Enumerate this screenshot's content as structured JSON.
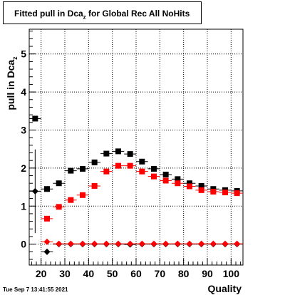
{
  "title": {
    "main": "Fitted pull in Dca",
    "subscript": "z",
    "rest": " for Global Rec All NoHits"
  },
  "footer": {
    "date": "Tue Sep  7 13:41:55 2021"
  },
  "colors": {
    "series_black": "#000000",
    "series_red": "#ff0000",
    "grid": "#000000",
    "frame": "#000000"
  },
  "chart_data": {
    "type": "scatter",
    "xlabel": "Quality",
    "ylabel": "pull in Dca",
    "ylabel_subscript": "z",
    "xlim": [
      15,
      105
    ],
    "ylim": [
      -0.55,
      5.65
    ],
    "x_ticks": [
      20,
      30,
      40,
      50,
      60,
      70,
      80,
      90,
      100
    ],
    "y_ticks": [
      0,
      1,
      2,
      3,
      4,
      5
    ],
    "grid": true,
    "series": [
      {
        "marker": "square",
        "color": "#000000",
        "points": [
          {
            "x": 17.5,
            "y": 3.3,
            "yerr": 0.05
          },
          {
            "x": 22.5,
            "y": 1.45,
            "yerr": 0.06
          },
          {
            "x": 27.5,
            "y": 1.6,
            "yerr": 0.03
          },
          {
            "x": 32.5,
            "y": 1.93,
            "yerr": 0.02
          },
          {
            "x": 37.5,
            "y": 1.98,
            "yerr": 0.02
          },
          {
            "x": 42.5,
            "y": 2.15,
            "yerr": 0.02
          },
          {
            "x": 47.5,
            "y": 2.38,
            "yerr": 0.02
          },
          {
            "x": 52.5,
            "y": 2.44,
            "yerr": 0.02
          },
          {
            "x": 57.5,
            "y": 2.37,
            "yerr": 0.02
          },
          {
            "x": 62.5,
            "y": 2.17,
            "yerr": 0.02
          },
          {
            "x": 67.5,
            "y": 1.98,
            "yerr": 0.02
          },
          {
            "x": 72.5,
            "y": 1.83,
            "yerr": 0.02
          },
          {
            "x": 77.5,
            "y": 1.71,
            "yerr": 0.02
          },
          {
            "x": 82.5,
            "y": 1.6,
            "yerr": 0.02
          },
          {
            "x": 87.5,
            "y": 1.53,
            "yerr": 0.02
          },
          {
            "x": 92.5,
            "y": 1.45,
            "yerr": 0.02
          },
          {
            "x": 97.5,
            "y": 1.42,
            "yerr": 0.02
          },
          {
            "x": 102.5,
            "y": 1.4,
            "yerr": 0.02
          }
        ]
      },
      {
        "marker": "square",
        "color": "#ff0000",
        "points": [
          {
            "x": 22.5,
            "y": 0.67,
            "yerr": 0.05
          },
          {
            "x": 27.5,
            "y": 0.98,
            "yerr": 0.03
          },
          {
            "x": 32.5,
            "y": 1.16,
            "yerr": 0.02
          },
          {
            "x": 37.5,
            "y": 1.29,
            "yerr": 0.02
          },
          {
            "x": 42.5,
            "y": 1.53,
            "yerr": 0.02
          },
          {
            "x": 47.5,
            "y": 1.91,
            "yerr": 0.02
          },
          {
            "x": 52.5,
            "y": 2.06,
            "yerr": 0.02
          },
          {
            "x": 57.5,
            "y": 2.06,
            "yerr": 0.02
          },
          {
            "x": 62.5,
            "y": 1.91,
            "yerr": 0.02
          },
          {
            "x": 67.5,
            "y": 1.78,
            "yerr": 0.02
          },
          {
            "x": 72.5,
            "y": 1.67,
            "yerr": 0.02
          },
          {
            "x": 77.5,
            "y": 1.6,
            "yerr": 0.02
          },
          {
            "x": 82.5,
            "y": 1.52,
            "yerr": 0.02
          },
          {
            "x": 87.5,
            "y": 1.42,
            "yerr": 0.02
          },
          {
            "x": 92.5,
            "y": 1.38,
            "yerr": 0.02
          },
          {
            "x": 97.5,
            "y": 1.36,
            "yerr": 0.02
          },
          {
            "x": 102.5,
            "y": 1.34,
            "yerr": 0.02
          }
        ]
      },
      {
        "marker": "diamond",
        "color": "#000000",
        "points": [
          {
            "x": 17.5,
            "y": 1.39,
            "yerr": 1.1
          },
          {
            "x": 22.5,
            "y": -0.2,
            "yerr": 0.08
          },
          {
            "x": 27.5,
            "y": 0.0,
            "yerr": 0.04
          },
          {
            "x": 32.5,
            "y": 0.0,
            "yerr": 0.03
          },
          {
            "x": 37.5,
            "y": 0.0,
            "yerr": 0.02
          },
          {
            "x": 42.5,
            "y": 0.0,
            "yerr": 0.02
          },
          {
            "x": 47.5,
            "y": 0.0,
            "yerr": 0.02
          },
          {
            "x": 52.5,
            "y": 0.0,
            "yerr": 0.02
          },
          {
            "x": 57.5,
            "y": -0.01,
            "yerr": 0.02
          },
          {
            "x": 62.5,
            "y": 0.0,
            "yerr": 0.02
          },
          {
            "x": 67.5,
            "y": 0.0,
            "yerr": 0.02
          },
          {
            "x": 72.5,
            "y": 0.0,
            "yerr": 0.02
          },
          {
            "x": 77.5,
            "y": 0.0,
            "yerr": 0.02
          },
          {
            "x": 82.5,
            "y": 0.0,
            "yerr": 0.02
          },
          {
            "x": 87.5,
            "y": 0.0,
            "yerr": 0.02
          },
          {
            "x": 92.5,
            "y": 0.0,
            "yerr": 0.02
          },
          {
            "x": 97.5,
            "y": 0.0,
            "yerr": 0.02
          },
          {
            "x": 102.5,
            "y": 0.0,
            "yerr": 0.02
          }
        ]
      },
      {
        "marker": "diamond",
        "color": "#ff0000",
        "points": [
          {
            "x": 22.5,
            "y": 0.06,
            "yerr": 0.03
          },
          {
            "x": 27.5,
            "y": 0.01,
            "yerr": 0.02
          },
          {
            "x": 32.5,
            "y": 0.01,
            "yerr": 0.02
          },
          {
            "x": 37.5,
            "y": 0.01,
            "yerr": 0.02
          },
          {
            "x": 42.5,
            "y": 0.01,
            "yerr": 0.02
          },
          {
            "x": 47.5,
            "y": 0.01,
            "yerr": 0.02
          },
          {
            "x": 52.5,
            "y": 0.01,
            "yerr": 0.02
          },
          {
            "x": 57.5,
            "y": 0.01,
            "yerr": 0.02
          },
          {
            "x": 62.5,
            "y": 0.01,
            "yerr": 0.02
          },
          {
            "x": 67.5,
            "y": 0.01,
            "yerr": 0.02
          },
          {
            "x": 72.5,
            "y": 0.01,
            "yerr": 0.02
          },
          {
            "x": 77.5,
            "y": 0.01,
            "yerr": 0.02
          },
          {
            "x": 82.5,
            "y": 0.01,
            "yerr": 0.02
          },
          {
            "x": 87.5,
            "y": 0.01,
            "yerr": 0.02
          },
          {
            "x": 92.5,
            "y": 0.01,
            "yerr": 0.02
          },
          {
            "x": 97.5,
            "y": 0.01,
            "yerr": 0.02
          },
          {
            "x": 102.5,
            "y": 0.01,
            "yerr": 0.02
          }
        ]
      }
    ]
  }
}
